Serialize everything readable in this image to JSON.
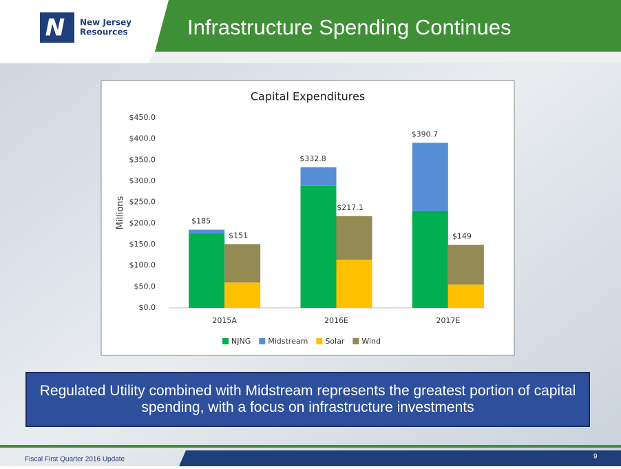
{
  "slide": {
    "logo_line1": "New Jersey",
    "logo_line2": "Resources",
    "title": "Infrastructure Spending Continues",
    "callout": "Regulated Utility combined with Midstream represents the greatest portion of capital spending, with a focus on infrastructure investments",
    "footer": "Fiscal First Quarter 2016 Update",
    "page": "9"
  },
  "chart_data": {
    "type": "stacked_grouped_bar",
    "title": "Capital Expenditures",
    "y_label": "Millions",
    "categories": [
      "2015A",
      "2016E",
      "2017E"
    ],
    "series": [
      {
        "name": "NJNG",
        "color": "#00b050",
        "stack": 0,
        "values": [
          176,
          289,
          230
        ]
      },
      {
        "name": "Midstream",
        "color": "#558ed5",
        "stack": 0,
        "values": [
          9,
          43.8,
          160.7
        ]
      },
      {
        "name": "Solar",
        "color": "#ffc000",
        "stack": 1,
        "values": [
          60,
          114,
          55
        ]
      },
      {
        "name": "Wind",
        "color": "#948a54",
        "stack": 1,
        "values": [
          91,
          103.1,
          94
        ]
      }
    ],
    "stack_totals": [
      [
        {
          "value": 185,
          "label": "$185"
        },
        {
          "value": 332.8,
          "label": "$332.8"
        },
        {
          "value": 390.7,
          "label": "$390.7"
        }
      ],
      [
        {
          "value": 151,
          "label": "$151"
        },
        {
          "value": 217.1,
          "label": "$217.1"
        },
        {
          "value": 149,
          "label": "$149"
        }
      ]
    ],
    "ylim": [
      0,
      450
    ],
    "yticks": [
      {
        "value": 0,
        "label": "$0.0"
      },
      {
        "value": 50,
        "label": "$50.0"
      },
      {
        "value": 100,
        "label": "$100.0"
      },
      {
        "value": 150,
        "label": "$150.0"
      },
      {
        "value": 200,
        "label": "$200.0"
      },
      {
        "value": 250,
        "label": "$250.0"
      },
      {
        "value": 300,
        "label": "$300.0"
      },
      {
        "value": 350,
        "label": "$350.0"
      },
      {
        "value": 400,
        "label": "$400.0"
      },
      {
        "value": 450,
        "label": "$450.0"
      }
    ],
    "grid": false,
    "legend": "bottom"
  }
}
